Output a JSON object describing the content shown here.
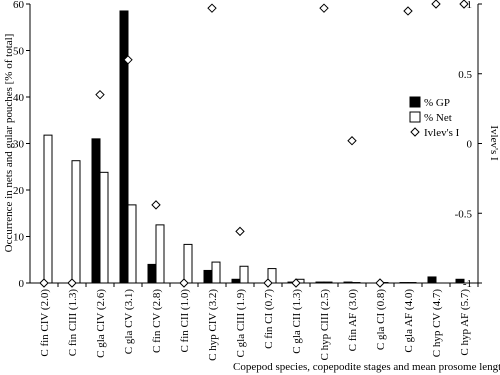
{
  "chart_data": {
    "type": "bar",
    "x_label": "Copepod species, copepodite stages and mean prosome lengths",
    "y_label": "Occurrence in nets and gular pouches [% of total]",
    "y2_label": "Ivlev's I",
    "categories": [
      "C fin CIV (2.0)",
      "C fin CIII (1.3)",
      "C gla CIV (2.6)",
      "C gla CV (3.1)",
      "C fin CV (2.8)",
      "C fin CII (1.0)",
      "C hyp CIV (3.2)",
      "C gla CIII (1.9)",
      "C fin CI (0.7)",
      "C gla CII (1.3)",
      "C hyp CIII (2.5)",
      "C fin AF (3.0)",
      "C gla CI (0.8)",
      "C gla AF (4.0)",
      "C hyp CV (4.7)",
      "C hyp AF (5.7)"
    ],
    "series": [
      {
        "name": "% GP",
        "color": "#000000",
        "values": [
          0,
          0,
          31,
          58.5,
          4,
          0,
          2.7,
          0.8,
          0,
          0.2,
          0.2,
          0.2,
          0,
          0.1,
          1.3,
          0.8
        ]
      },
      {
        "name": "% Net",
        "color": "#ffffff",
        "values": [
          31.8,
          26.3,
          23.8,
          16.8,
          12.5,
          8.3,
          4.5,
          3.6,
          3.1,
          0.8,
          0.2,
          0.1,
          0.1,
          0.1,
          0,
          0
        ]
      },
      {
        "name": "Ivlev's I",
        "color": "#ffffff",
        "axis": "y2",
        "marker": "diamond",
        "values": [
          -1,
          -1,
          0.35,
          0.6,
          -0.44,
          -1,
          0.97,
          -0.63,
          -1,
          -1,
          0.97,
          0.02,
          -1,
          0.95,
          1,
          1
        ]
      }
    ],
    "ylim": [
      0,
      60
    ],
    "yticks": [
      0,
      10,
      20,
      30,
      40,
      50,
      60
    ],
    "y2lim": [
      -1,
      1
    ],
    "y2ticks": [
      -1,
      -0.5,
      0,
      0.5,
      1
    ],
    "grid": false,
    "legend": "right"
  }
}
